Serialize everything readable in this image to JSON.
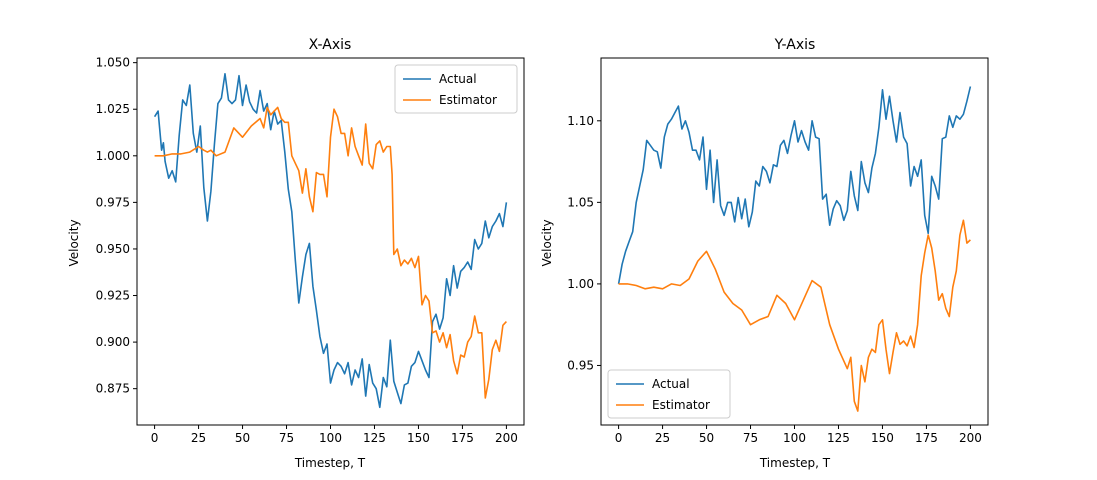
{
  "chart_data": [
    {
      "type": "line",
      "title": "X-Axis",
      "xlabel": "Timestep, T",
      "ylabel": "Velocity",
      "xlim": [
        -10,
        210
      ],
      "ylim": [
        0.8555,
        1.0525
      ],
      "xticks": [
        0,
        25,
        50,
        75,
        100,
        125,
        150,
        175,
        200
      ],
      "xtick_labels": [
        "0",
        "25",
        "50",
        "75",
        "100",
        "125",
        "150",
        "175",
        "200"
      ],
      "yticks": [
        0.875,
        0.9,
        0.925,
        0.95,
        0.975,
        1.0,
        1.025,
        1.05
      ],
      "ytick_labels": [
        "0.875",
        "0.900",
        "0.925",
        "0.950",
        "0.975",
        "1.000",
        "1.025",
        "1.050"
      ],
      "legend": "top-right",
      "grid": false,
      "series": [
        {
          "name": "Actual",
          "color": "#1f77b4",
          "x": [
            0,
            2,
            4,
            5,
            6,
            8,
            10,
            12,
            14,
            16,
            18,
            20,
            22,
            24,
            26,
            28,
            30,
            32,
            34,
            36,
            38,
            40,
            42,
            44,
            46,
            48,
            50,
            52,
            54,
            56,
            58,
            60,
            62,
            64,
            66,
            68,
            70,
            72,
            74,
            76,
            78,
            80,
            82,
            84,
            86,
            88,
            90,
            92,
            94,
            96,
            98,
            100,
            102,
            104,
            106,
            108,
            110,
            112,
            114,
            116,
            118,
            120,
            122,
            124,
            126,
            128,
            130,
            132,
            134,
            136,
            138,
            140,
            142,
            144,
            146,
            148,
            150,
            152,
            154,
            156,
            158,
            160,
            162,
            164,
            166,
            168,
            170,
            172,
            174,
            176,
            178,
            180,
            182,
            184,
            186,
            188,
            190,
            192,
            194,
            196,
            198,
            200
          ],
          "y": [
            1.021,
            1.024,
            1.003,
            1.007,
            0.997,
            0.988,
            0.992,
            0.986,
            1.011,
            1.03,
            1.027,
            1.038,
            1.012,
            1.002,
            1.016,
            0.983,
            0.965,
            0.981,
            1.006,
            1.028,
            1.031,
            1.044,
            1.03,
            1.028,
            1.03,
            1.043,
            1.027,
            1.038,
            1.029,
            1.025,
            1.023,
            1.035,
            1.024,
            1.028,
            1.014,
            1.024,
            1.017,
            1.019,
            1.002,
            0.982,
            0.97,
            0.944,
            0.921,
            0.935,
            0.947,
            0.953,
            0.93,
            0.917,
            0.903,
            0.894,
            0.899,
            0.878,
            0.885,
            0.889,
            0.887,
            0.883,
            0.889,
            0.877,
            0.885,
            0.881,
            0.891,
            0.871,
            0.888,
            0.878,
            0.875,
            0.865,
            0.881,
            0.876,
            0.901,
            0.879,
            0.873,
            0.867,
            0.877,
            0.878,
            0.887,
            0.889,
            0.895,
            0.89,
            0.885,
            0.881,
            0.911,
            0.915,
            0.907,
            0.913,
            0.934,
            0.925,
            0.941,
            0.929,
            0.938,
            0.94,
            0.943,
            0.939,
            0.955,
            0.95,
            0.953,
            0.965,
            0.956,
            0.962,
            0.965,
            0.969,
            0.962,
            0.975
          ]
        },
        {
          "name": "Estimator",
          "color": "#ff7f0e",
          "x": [
            0,
            5,
            10,
            15,
            20,
            25,
            28,
            30,
            32,
            35,
            40,
            45,
            50,
            55,
            60,
            62,
            64,
            66,
            68,
            70,
            72,
            74,
            76,
            78,
            80,
            82,
            84,
            86,
            88,
            90,
            92,
            94,
            96,
            98,
            100,
            102,
            104,
            106,
            108,
            110,
            112,
            114,
            116,
            118,
            120,
            122,
            124,
            126,
            128,
            130,
            132,
            134,
            135,
            136,
            138,
            140,
            142,
            144,
            146,
            148,
            150,
            152,
            154,
            156,
            158,
            160,
            162,
            164,
            166,
            168,
            170,
            172,
            174,
            176,
            178,
            180,
            182,
            184,
            186,
            188,
            190,
            192,
            194,
            196,
            198,
            200
          ],
          "y": [
            1.0,
            1.0,
            1.001,
            1.001,
            1.002,
            1.005,
            1.003,
            1.002,
            1.003,
            1.0,
            1.002,
            1.015,
            1.01,
            1.016,
            1.02,
            1.015,
            1.026,
            1.022,
            1.024,
            1.026,
            1.02,
            1.018,
            1.018,
            1.0,
            0.996,
            0.992,
            0.98,
            0.993,
            0.978,
            0.97,
            0.991,
            0.99,
            0.99,
            0.978,
            1.01,
            1.025,
            1.021,
            1.012,
            1.012,
            1.0,
            1.015,
            1.005,
            1.0,
            0.995,
            1.017,
            0.996,
            0.993,
            1.006,
            1.008,
            1.002,
            1.005,
            1.005,
            0.99,
            0.947,
            0.95,
            0.941,
            0.944,
            0.942,
            0.945,
            0.94,
            0.946,
            0.92,
            0.925,
            0.922,
            0.905,
            0.906,
            0.9,
            0.905,
            0.897,
            0.904,
            0.89,
            0.883,
            0.893,
            0.892,
            0.9,
            0.903,
            0.914,
            0.905,
            0.905,
            0.87,
            0.88,
            0.896,
            0.901,
            0.895,
            0.909,
            0.911
          ]
        }
      ]
    },
    {
      "type": "line",
      "title": "Y-Axis",
      "xlabel": "Timestep, T",
      "ylabel": "Velocity",
      "xlim": [
        -10,
        210
      ],
      "ylim": [
        0.9135,
        1.1385
      ],
      "xticks": [
        0,
        25,
        50,
        75,
        100,
        125,
        150,
        175,
        200
      ],
      "xtick_labels": [
        "0",
        "25",
        "50",
        "75",
        "100",
        "125",
        "150",
        "175",
        "200"
      ],
      "yticks": [
        0.95,
        1.0,
        1.05,
        1.1
      ],
      "ytick_labels": [
        "0.95",
        "1.00",
        "1.05",
        "1.10"
      ],
      "legend": "bottom-left",
      "grid": false,
      "series": [
        {
          "name": "Actual",
          "color": "#1f77b4",
          "x": [
            0,
            2,
            4,
            6,
            8,
            10,
            12,
            14,
            16,
            18,
            20,
            22,
            24,
            26,
            28,
            30,
            32,
            34,
            36,
            38,
            40,
            42,
            44,
            46,
            48,
            50,
            52,
            54,
            56,
            58,
            60,
            62,
            64,
            66,
            68,
            70,
            72,
            74,
            76,
            78,
            80,
            82,
            84,
            86,
            88,
            90,
            92,
            94,
            96,
            98,
            100,
            102,
            104,
            106,
            108,
            110,
            112,
            114,
            116,
            118,
            120,
            122,
            124,
            126,
            128,
            130,
            132,
            134,
            136,
            138,
            140,
            142,
            144,
            146,
            148,
            150,
            152,
            154,
            156,
            158,
            160,
            162,
            164,
            166,
            168,
            170,
            172,
            174,
            176,
            178,
            180,
            182,
            184,
            186,
            188,
            190,
            192,
            194,
            196,
            198,
            200
          ],
          "y": [
            1.0,
            1.012,
            1.02,
            1.026,
            1.032,
            1.05,
            1.06,
            1.07,
            1.088,
            1.085,
            1.082,
            1.081,
            1.071,
            1.09,
            1.098,
            1.101,
            1.105,
            1.109,
            1.095,
            1.1,
            1.093,
            1.082,
            1.082,
            1.076,
            1.09,
            1.058,
            1.082,
            1.05,
            1.076,
            1.048,
            1.042,
            1.05,
            1.05,
            1.038,
            1.053,
            1.04,
            1.052,
            1.035,
            1.044,
            1.063,
            1.06,
            1.072,
            1.069,
            1.062,
            1.073,
            1.072,
            1.085,
            1.088,
            1.08,
            1.091,
            1.1,
            1.087,
            1.094,
            1.087,
            1.082,
            1.1,
            1.09,
            1.089,
            1.052,
            1.055,
            1.036,
            1.046,
            1.051,
            1.048,
            1.039,
            1.045,
            1.069,
            1.054,
            1.045,
            1.075,
            1.062,
            1.056,
            1.071,
            1.08,
            1.096,
            1.119,
            1.101,
            1.115,
            1.1,
            1.087,
            1.105,
            1.09,
            1.086,
            1.06,
            1.072,
            1.066,
            1.076,
            1.042,
            1.031,
            1.066,
            1.06,
            1.052,
            1.089,
            1.09,
            1.103,
            1.096,
            1.103,
            1.101,
            1.104,
            1.112,
            1.121
          ]
        },
        {
          "name": "Estimator",
          "color": "#ff7f0e",
          "x": [
            0,
            5,
            10,
            15,
            20,
            25,
            30,
            35,
            40,
            45,
            50,
            55,
            60,
            65,
            70,
            75,
            80,
            85,
            90,
            95,
            100,
            105,
            110,
            115,
            120,
            125,
            130,
            132,
            134,
            136,
            138,
            140,
            142,
            144,
            146,
            148,
            150,
            152,
            154,
            156,
            158,
            160,
            162,
            164,
            166,
            168,
            170,
            172,
            174,
            176,
            178,
            180,
            182,
            184,
            186,
            188,
            190,
            192,
            194,
            196,
            198,
            200
          ],
          "y": [
            1.0,
            1.0,
            0.999,
            0.997,
            0.998,
            0.997,
            1.0,
            0.999,
            1.003,
            1.014,
            1.02,
            1.009,
            0.995,
            0.988,
            0.984,
            0.975,
            0.978,
            0.98,
            0.993,
            0.988,
            0.978,
            0.99,
            1.002,
            0.998,
            0.975,
            0.96,
            0.948,
            0.955,
            0.928,
            0.922,
            0.95,
            0.94,
            0.955,
            0.96,
            0.958,
            0.975,
            0.978,
            0.96,
            0.945,
            0.958,
            0.97,
            0.963,
            0.965,
            0.962,
            0.968,
            0.961,
            0.975,
            1.005,
            1.019,
            1.03,
            1.022,
            1.008,
            0.99,
            0.994,
            0.985,
            0.98,
            0.998,
            1.008,
            1.03,
            1.039,
            1.025,
            1.027
          ]
        }
      ]
    }
  ]
}
